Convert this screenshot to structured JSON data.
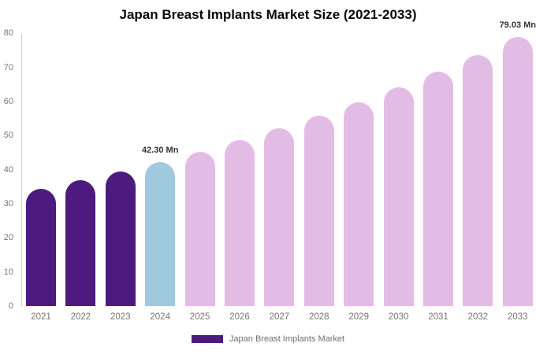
{
  "title": "Japan Breast Implants Market Size (2021-2033)",
  "chart_data": {
    "type": "bar",
    "title": "Japan Breast Implants Market Size (2021-2033)",
    "categories": [
      "2021",
      "2022",
      "2023",
      "2024",
      "2025",
      "2026",
      "2027",
      "2028",
      "2029",
      "2030",
      "2031",
      "2032",
      "2033"
    ],
    "series": [
      {
        "name": "Japan Breast Implants Market",
        "values": [
          34.34,
          36.81,
          39.46,
          42.3,
          45.34,
          48.6,
          52.1,
          55.85,
          59.86,
          64.17,
          68.78,
          73.73,
          79.03
        ]
      }
    ],
    "units": "Mn",
    "ylim": [
      0,
      80
    ],
    "yticks": [
      0,
      10,
      20,
      30,
      40,
      50,
      60,
      70,
      80
    ],
    "grid": false,
    "legend_position": "bottom",
    "bar_colors": [
      "#4D1A7F",
      "#4D1A7F",
      "#4D1A7F",
      "#A0C9DF",
      "#E3BCE6",
      "#E3BCE6",
      "#E3BCE6",
      "#E3BCE6",
      "#E3BCE6",
      "#E3BCE6",
      "#E3BCE6",
      "#E3BCE6",
      "#E3BCE6"
    ],
    "annotations": [
      {
        "index": 3,
        "text": "42.30 Mn"
      },
      {
        "index": 12,
        "text": "79.03 Mn"
      }
    ]
  },
  "legend": {
    "label": "Japan Breast Implants Market",
    "swatch_color": "#4D1A7F"
  },
  "colors": {
    "historical_bar": "#4D1A7F",
    "highlight_bar": "#A0C9DF",
    "forecast_bar": "#E3BCE6",
    "axis_line": "#CCCCCC",
    "tick_text": "#757575",
    "annotation_text": "#333333",
    "legend_text": "#6E6E6E",
    "title_text": "#0A0A0A",
    "background": "#FFFFFF"
  }
}
